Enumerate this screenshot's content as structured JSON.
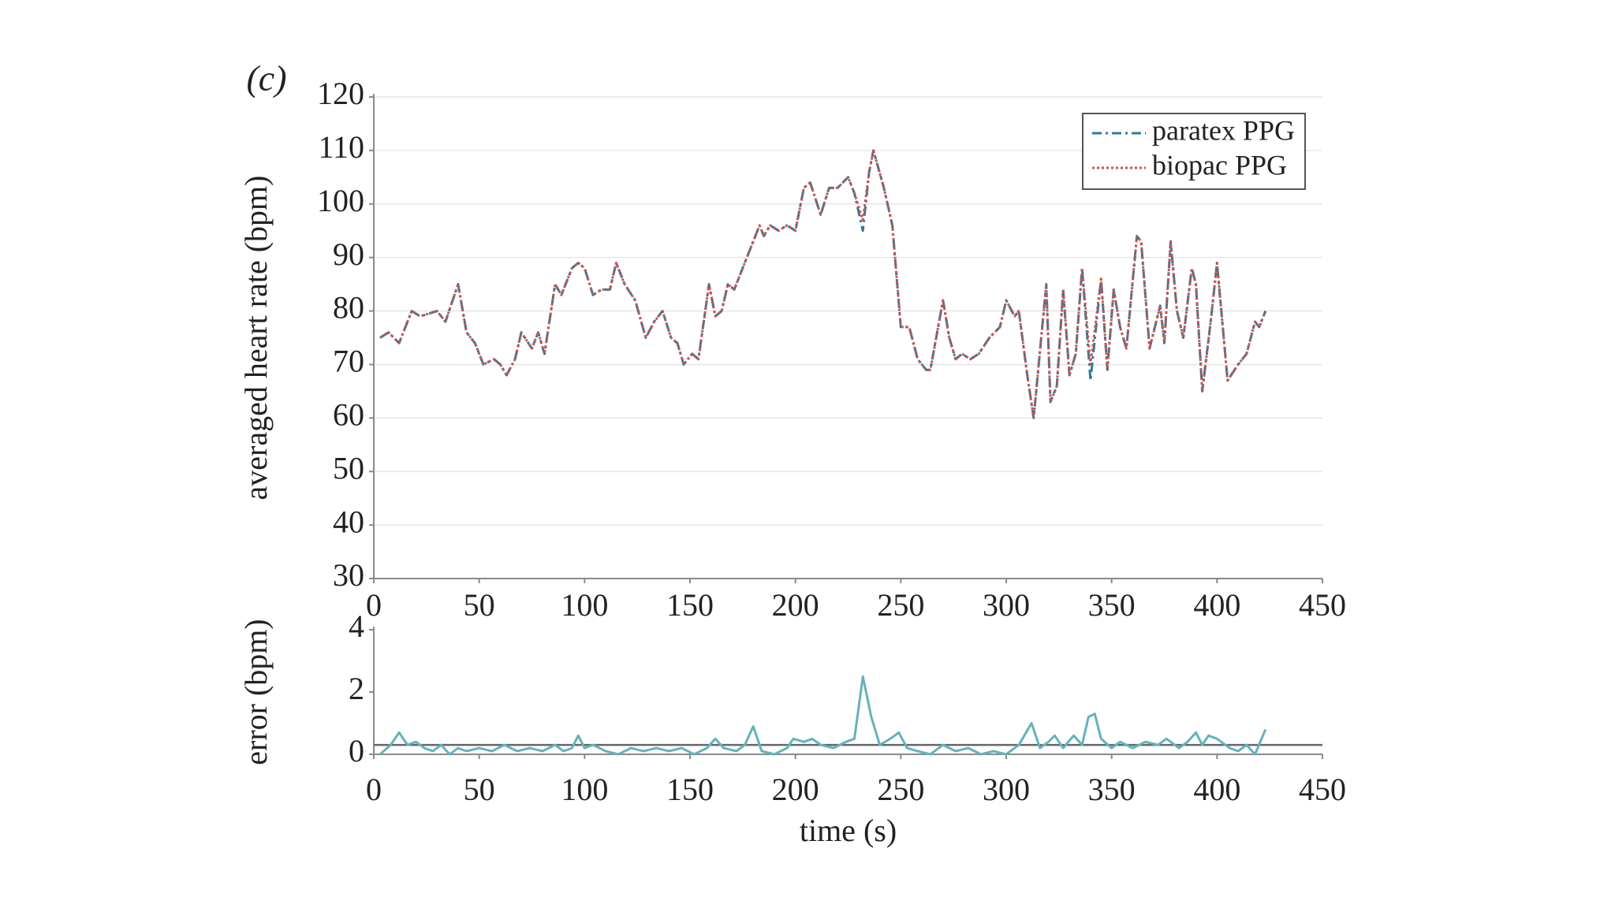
{
  "panel_label": "(c)",
  "chart_data": [
    {
      "type": "line",
      "ylabel": "averaged heart rate (bpm)",
      "x": [
        3,
        7,
        12,
        18,
        22,
        30,
        34,
        40,
        44,
        48,
        52,
        57,
        60,
        63,
        67,
        70,
        75,
        78,
        81,
        86,
        89,
        94,
        97,
        100,
        104,
        108,
        112,
        115,
        119,
        124,
        129,
        133,
        137,
        141,
        144,
        147,
        151,
        154,
        159,
        162,
        165,
        168,
        171,
        175,
        179,
        183,
        185,
        188,
        192,
        196,
        200,
        204,
        207,
        212,
        216,
        220,
        225,
        228,
        232,
        235,
        237,
        242,
        246,
        250,
        254,
        258,
        262,
        264,
        270,
        273,
        276,
        279,
        283,
        287,
        292,
        297,
        300,
        304,
        306,
        310,
        313,
        319,
        321,
        324,
        327,
        330,
        333,
        336,
        340,
        345,
        348,
        351,
        354,
        357,
        362,
        364,
        368,
        373,
        375,
        378,
        381,
        384,
        388,
        390,
        393,
        397,
        400,
        405,
        410,
        414,
        418,
        420,
        423
      ],
      "series": [
        {
          "name": "paratex PPG",
          "color": "#2b7c9c",
          "dash": "dashdot",
          "values": [
            75,
            76,
            74,
            80,
            79,
            80,
            78,
            85,
            76,
            74,
            70,
            71,
            70,
            68,
            71,
            76,
            73,
            76,
            72,
            85,
            83,
            88,
            89,
            88,
            83,
            84,
            84,
            89,
            85,
            82,
            75,
            78,
            80,
            75,
            74,
            70,
            72,
            71,
            85,
            79,
            80,
            85,
            84,
            88,
            92,
            96,
            94,
            96,
            95,
            96,
            95,
            103,
            104,
            98,
            103,
            103,
            105,
            102,
            95,
            106,
            110,
            103,
            96,
            77,
            77,
            71,
            69,
            69,
            82,
            75,
            71,
            72,
            71,
            72,
            75,
            77,
            82,
            79,
            80,
            68,
            60,
            85,
            63,
            66,
            84,
            68,
            72,
            88,
            67,
            86,
            69,
            84,
            77,
            73,
            94,
            93,
            73,
            81,
            74,
            93,
            80,
            75,
            88,
            85,
            65,
            78,
            89,
            67,
            70,
            72,
            78,
            77,
            80
          ]
        },
        {
          "name": "biopac PPG",
          "color": "#c8564f",
          "dash": "dotted",
          "values": [
            75,
            76,
            74,
            80,
            79,
            80,
            78,
            85,
            76,
            74,
            70,
            71,
            70,
            68,
            71,
            76,
            73,
            76,
            72,
            85,
            83,
            88,
            89,
            88,
            83,
            84,
            84,
            89,
            85,
            82,
            75,
            78,
            80,
            75,
            74,
            70,
            72,
            71,
            85,
            79,
            80,
            85,
            84,
            88,
            92,
            96,
            94,
            96,
            95,
            96,
            95,
            103,
            104,
            98,
            103,
            103,
            105,
            102,
            97,
            106,
            110,
            103,
            96,
            77,
            77,
            71,
            69,
            69,
            82,
            75,
            71,
            72,
            71,
            72,
            75,
            77,
            82,
            79,
            80,
            68,
            60,
            85,
            63,
            66,
            84,
            68,
            72,
            88,
            70,
            86,
            69,
            84,
            77,
            73,
            94,
            93,
            73,
            81,
            74,
            93,
            80,
            75,
            88,
            85,
            65,
            78,
            89,
            67,
            70,
            72,
            78,
            77,
            80
          ]
        }
      ],
      "xlim": [
        0,
        450
      ],
      "xticks": [
        0,
        50,
        100,
        150,
        200,
        250,
        300,
        350,
        400,
        450
      ],
      "ylim": [
        30,
        120
      ],
      "yticks": [
        30,
        40,
        50,
        60,
        70,
        80,
        90,
        100,
        110,
        120
      ],
      "grid": true,
      "legend": "upper right"
    },
    {
      "type": "line",
      "xlabel": "time (s)",
      "ylabel": "error (bpm)",
      "x": [
        3,
        8,
        12,
        16,
        20,
        24,
        28,
        32,
        36,
        40,
        44,
        50,
        56,
        62,
        68,
        74,
        80,
        86,
        90,
        94,
        97,
        100,
        104,
        110,
        116,
        122,
        128,
        134,
        140,
        146,
        152,
        158,
        162,
        166,
        172,
        176,
        180,
        184,
        190,
        196,
        199,
        204,
        208,
        212,
        218,
        224,
        228,
        232,
        236,
        240,
        245,
        249,
        253,
        258,
        264,
        270,
        276,
        282,
        288,
        294,
        300,
        306,
        312,
        316,
        320,
        323,
        327,
        332,
        336,
        339,
        342,
        345,
        350,
        354,
        360,
        366,
        372,
        376,
        382,
        386,
        390,
        393,
        396,
        400,
        406,
        410,
        414,
        418,
        423
      ],
      "series": [
        {
          "color": "#63b3bb",
          "values": [
            0,
            0.3,
            0.7,
            0.3,
            0.4,
            0.2,
            0.1,
            0.3,
            0,
            0.2,
            0.1,
            0.2,
            0.1,
            0.3,
            0.1,
            0.2,
            0.1,
            0.3,
            0.1,
            0.2,
            0.6,
            0.2,
            0.3,
            0.1,
            0,
            0.2,
            0.1,
            0.2,
            0.1,
            0.2,
            0,
            0.2,
            0.5,
            0.2,
            0.1,
            0.3,
            0.9,
            0.1,
            0,
            0.2,
            0.5,
            0.4,
            0.5,
            0.3,
            0.2,
            0.4,
            0.5,
            2.5,
            1.2,
            0.3,
            0.5,
            0.7,
            0.2,
            0.1,
            0,
            0.3,
            0.1,
            0.2,
            0,
            0.1,
            0,
            0.3,
            1.0,
            0.2,
            0.4,
            0.6,
            0.2,
            0.6,
            0.3,
            1.2,
            1.3,
            0.5,
            0.2,
            0.4,
            0.2,
            0.4,
            0.3,
            0.5,
            0.2,
            0.4,
            0.7,
            0.3,
            0.6,
            0.5,
            0.2,
            0.1,
            0.3,
            0,
            0.8
          ]
        }
      ],
      "hline": 0.3,
      "hline_color": "#666666",
      "xlim": [
        0,
        450
      ],
      "xticks": [
        0,
        50,
        100,
        150,
        200,
        250,
        300,
        350,
        400,
        450
      ],
      "ylim": [
        0,
        4
      ],
      "yticks": [
        0,
        2,
        4
      ],
      "grid": false
    }
  ]
}
